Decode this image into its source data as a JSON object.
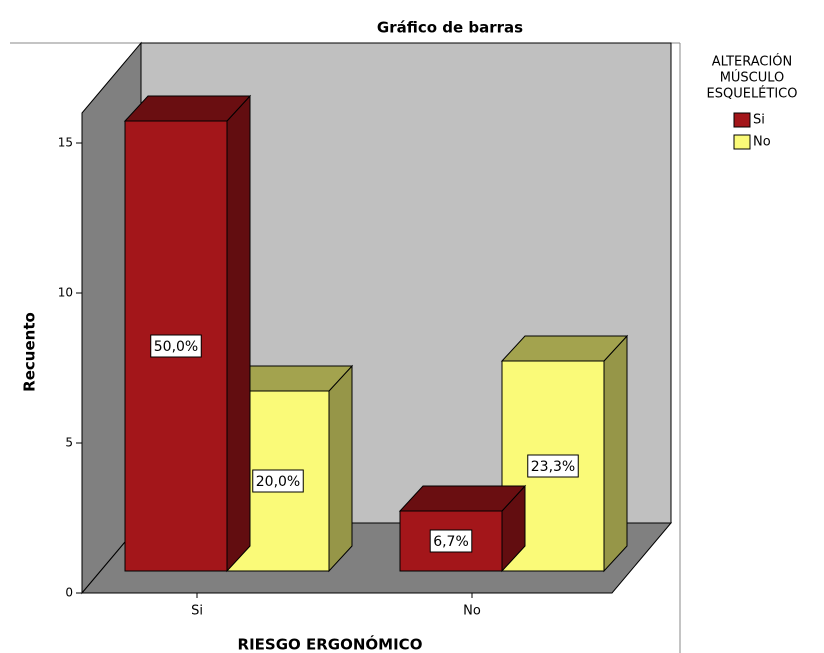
{
  "chart_data": {
    "type": "bar3d",
    "title": "Gráfico de barras",
    "x_label": "RIESGO ERGONÓMICO",
    "y_label": "Recuento",
    "legend_title": [
      "ALTERACIÓN",
      "MÚSCULO",
      "ESQUELÉTICO"
    ],
    "categories": [
      "Si",
      "No"
    ],
    "series": [
      {
        "name": "Si",
        "color": "#a3161a",
        "values": [
          15,
          2
        ],
        "value_labels": [
          "50,0%",
          "6,7%"
        ]
      },
      {
        "name": "No",
        "color": "#fafa78",
        "values": [
          6,
          7
        ],
        "value_labels": [
          "20,0%",
          "23,3%"
        ]
      }
    ],
    "ylim": [
      0,
      16
    ],
    "yticks": [
      0,
      5,
      10,
      15
    ]
  }
}
